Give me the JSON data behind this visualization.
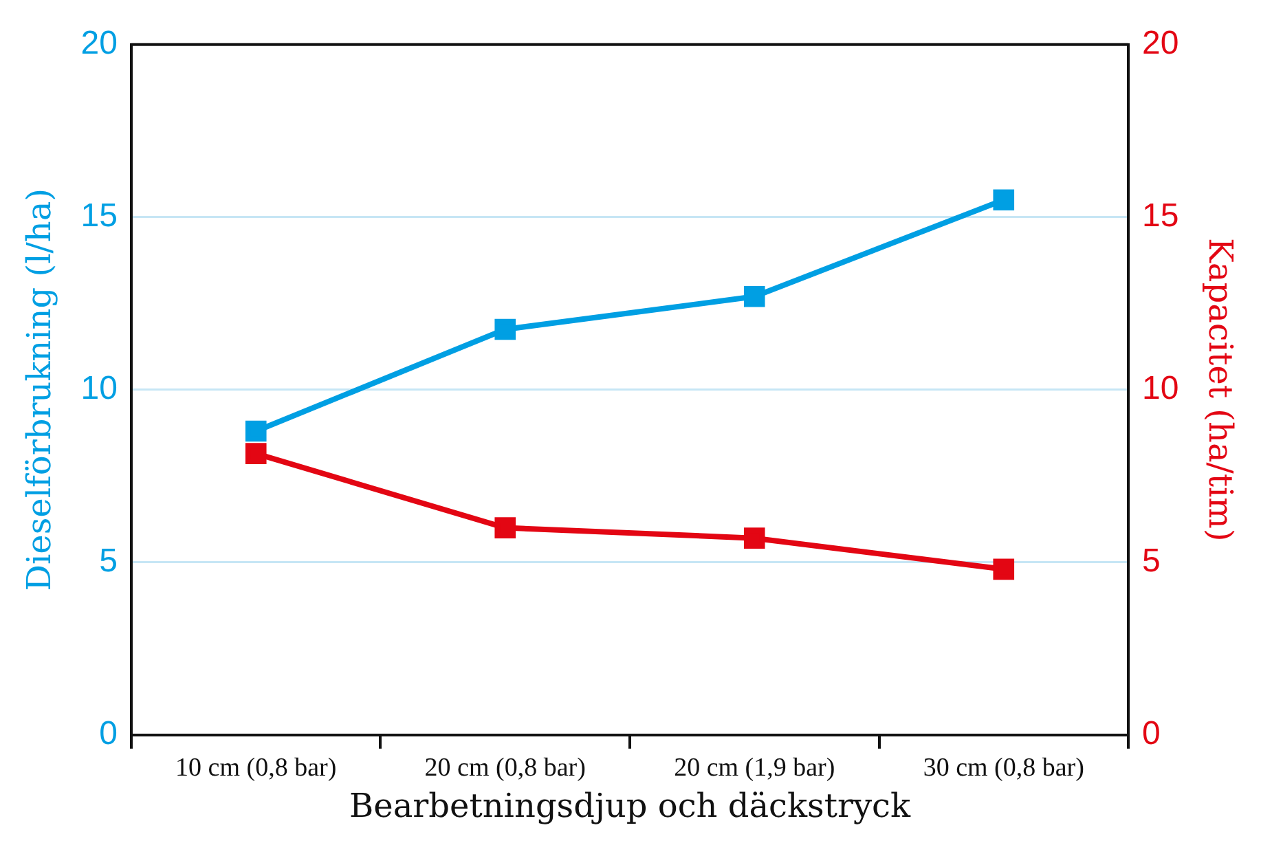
{
  "chart_data": {
    "type": "line",
    "xlabel": "Bearbetningsdjup och däckstryck",
    "ylabel": "Dieselförbrukning (l/ha)",
    "y2label": "Kapacitet (ha/tim)",
    "categories": [
      "10 cm (0,8 bar)",
      "20 cm (0,8 bar)",
      "20 cm (1,9 bar)",
      "30 cm (0,8 bar)"
    ],
    "series": [
      {
        "color": "#009fe3",
        "values": [
          8.8,
          11.75,
          12.7,
          15.5
        ]
      },
      {
        "color": "#e30613",
        "values": [
          8.15,
          6.0,
          5.7,
          4.8
        ],
        "axis": "y2"
      }
    ],
    "ylim": [
      0,
      20
    ],
    "yticks": [
      0,
      5,
      10,
      15,
      20
    ],
    "y2lim": [
      0,
      20
    ],
    "y2ticks": [
      0,
      5,
      10,
      15,
      20
    ],
    "grid": "y",
    "marker": "square",
    "line_style": "solid",
    "legend": false
  }
}
